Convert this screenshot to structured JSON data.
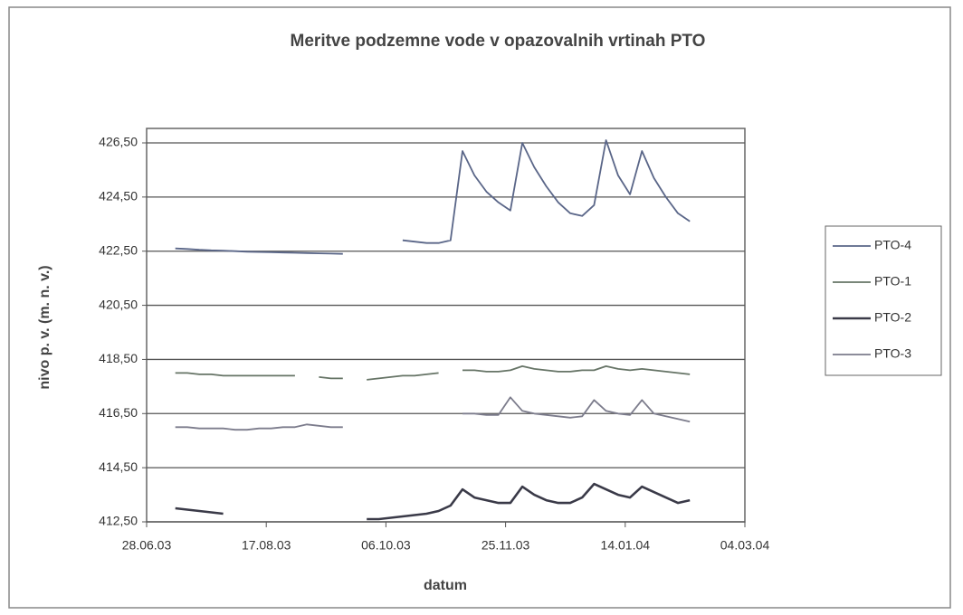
{
  "chart_data": {
    "type": "line",
    "title": "Meritve podzemne vode v opazovalnih vrtinah PTO",
    "xlabel": "datum",
    "ylabel": "nivo p. v. (m. n. v.)",
    "x": [
      "2003-07-10",
      "2003-07-15",
      "2003-07-20",
      "2003-07-25",
      "2003-07-30",
      "2003-08-04",
      "2003-08-09",
      "2003-08-14",
      "2003-08-19",
      "2003-08-24",
      "2003-08-29",
      "2003-09-03",
      "2003-09-08",
      "2003-09-13",
      "2003-09-18",
      "2003-09-23",
      "2003-09-28",
      "2003-10-03",
      "2003-10-08",
      "2003-10-13",
      "2003-10-18",
      "2003-10-23",
      "2003-10-28",
      "2003-11-02",
      "2003-11-07",
      "2003-11-12",
      "2003-11-17",
      "2003-11-22",
      "2003-11-27",
      "2003-12-02",
      "2003-12-07",
      "2003-12-12",
      "2003-12-17",
      "2003-12-22",
      "2003-12-27",
      "2004-01-01",
      "2004-01-06",
      "2004-01-11",
      "2004-01-16",
      "2004-01-21",
      "2004-01-26",
      "2004-01-31",
      "2004-02-05",
      "2004-02-10"
    ],
    "series": [
      {
        "name": "PTO-4",
        "color": "#5a6688",
        "values": [
          422.6,
          422.58,
          422.55,
          422.53,
          422.52,
          422.5,
          422.48,
          422.47,
          422.46,
          422.45,
          422.44,
          422.43,
          422.42,
          422.41,
          422.4,
          null,
          null,
          null,
          null,
          422.9,
          422.85,
          422.8,
          422.8,
          422.9,
          426.2,
          425.3,
          424.7,
          424.3,
          424.0,
          426.5,
          425.6,
          424.9,
          424.3,
          423.9,
          423.8,
          424.2,
          426.6,
          425.3,
          424.6,
          426.2,
          425.2,
          424.5,
          423.9,
          423.6
        ]
      },
      {
        "name": "PTO-1",
        "color": "#667466",
        "values": [
          418.0,
          418.0,
          417.95,
          417.95,
          417.9,
          417.9,
          417.9,
          417.9,
          417.9,
          417.9,
          417.9,
          null,
          417.85,
          417.8,
          417.8,
          null,
          417.75,
          417.8,
          417.85,
          417.9,
          417.9,
          417.95,
          418.0,
          null,
          418.1,
          418.1,
          418.05,
          418.05,
          418.1,
          418.25,
          418.15,
          418.1,
          418.05,
          418.05,
          418.1,
          418.1,
          418.25,
          418.15,
          418.1,
          418.15,
          418.1,
          418.05,
          418.0,
          417.95
        ]
      },
      {
        "name": "PTO-2",
        "color": "#3a3a48",
        "values": [
          413.0,
          412.95,
          412.9,
          412.85,
          412.8,
          null,
          null,
          null,
          null,
          null,
          null,
          null,
          null,
          null,
          null,
          null,
          412.6,
          412.6,
          412.65,
          412.7,
          412.75,
          412.8,
          412.9,
          413.1,
          413.7,
          413.4,
          413.3,
          413.2,
          413.2,
          413.8,
          413.5,
          413.3,
          413.2,
          413.2,
          413.4,
          413.9,
          413.7,
          413.5,
          413.4,
          413.8,
          413.6,
          413.4,
          413.2,
          413.3
        ]
      },
      {
        "name": "PTO-3",
        "color": "#7c7c8c",
        "values": [
          416.0,
          416.0,
          415.95,
          415.95,
          415.95,
          415.9,
          415.9,
          415.95,
          415.95,
          416.0,
          416.0,
          416.1,
          416.05,
          416.0,
          416.0,
          null,
          null,
          null,
          null,
          null,
          null,
          null,
          null,
          null,
          416.5,
          416.5,
          416.45,
          416.45,
          417.1,
          416.6,
          416.5,
          416.45,
          416.4,
          416.35,
          416.4,
          417.0,
          416.6,
          416.5,
          416.45,
          417.0,
          416.5,
          416.4,
          416.3,
          416.2
        ]
      }
    ],
    "xlim": [
      "2003-06-28",
      "2004-03-04"
    ],
    "xticks": [
      {
        "value": "2003-06-28",
        "label": "28.06.03"
      },
      {
        "value": "2003-08-17",
        "label": "17.08.03"
      },
      {
        "value": "2003-10-06",
        "label": "06.10.03"
      },
      {
        "value": "2003-11-25",
        "label": "25.11.03"
      },
      {
        "value": "2004-01-14",
        "label": "14.01.04"
      },
      {
        "value": "2004-03-04",
        "label": "04.03.04"
      }
    ],
    "ylim": [
      412.5,
      426.5
    ],
    "yticks": [
      {
        "value": 412.5,
        "label": "412,50"
      },
      {
        "value": 414.5,
        "label": "414,50"
      },
      {
        "value": 416.5,
        "label": "416,50"
      },
      {
        "value": 418.5,
        "label": "418,50"
      },
      {
        "value": 420.5,
        "label": "420,50"
      },
      {
        "value": 422.5,
        "label": "422,50"
      },
      {
        "value": 424.5,
        "label": "424,50"
      },
      {
        "value": 426.5,
        "label": "426,50"
      }
    ],
    "grid": true,
    "legend": "right"
  }
}
